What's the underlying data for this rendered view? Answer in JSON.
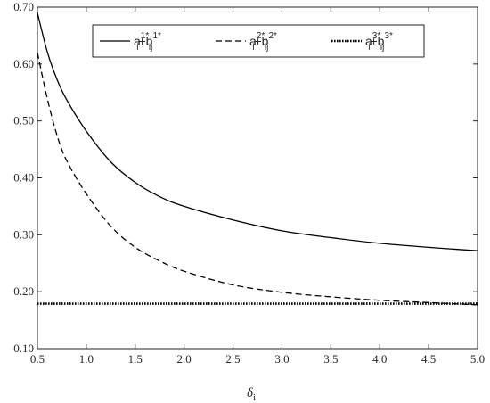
{
  "chart_data": {
    "type": "line",
    "xlabel": "δ",
    "xlabel_sub": "i",
    "ylabel": "",
    "xlim": [
      0.5,
      5.0
    ],
    "ylim": [
      0.1,
      0.7
    ],
    "xticks": [
      0.5,
      1.0,
      1.5,
      2.0,
      2.5,
      3.0,
      3.5,
      4.0,
      4.5,
      5.0
    ],
    "xtick_labels": [
      "0.5",
      "1.0",
      "1.5",
      "2.0",
      "2.5",
      "3.0",
      "3.5",
      "4.0",
      "4.5",
      "5.0"
    ],
    "yticks": [
      0.1,
      0.2,
      0.3,
      0.4,
      0.5,
      0.6,
      0.7
    ],
    "ytick_labels": [
      "0.10",
      "0.20",
      "0.30",
      "0.40",
      "0.50",
      "0.60",
      "0.70"
    ],
    "grid": false,
    "legend_position": "top-right",
    "x": [
      0.5,
      0.6,
      0.7,
      0.8,
      1.0,
      1.25,
      1.5,
      1.75,
      2.0,
      2.5,
      3.0,
      3.5,
      4.0,
      4.5,
      5.0
    ],
    "series": [
      {
        "legend": {
          "a": "a",
          "a_sup": "1*",
          "a_sub": "i",
          "plus": "+b",
          "b_sup": "1*",
          "b_sub": "ij"
        },
        "style": "solid",
        "color": "#000000",
        "values": [
          0.69,
          0.622,
          0.573,
          0.537,
          0.482,
          0.428,
          0.392,
          0.367,
          0.35,
          0.326,
          0.307,
          0.295,
          0.285,
          0.278,
          0.272
        ]
      },
      {
        "legend": {
          "a": "a",
          "a_sup": "2*",
          "a_sub": "i",
          "plus": "+b",
          "b_sup": "2*",
          "b_sub": "ij"
        },
        "style": "dashed",
        "color": "#000000",
        "values": [
          0.62,
          0.54,
          0.475,
          0.43,
          0.372,
          0.315,
          0.278,
          0.254,
          0.236,
          0.212,
          0.199,
          0.191,
          0.185,
          0.181,
          0.177
        ]
      },
      {
        "legend": {
          "a": "a",
          "a_sup": "3*",
          "a_sub": "i",
          "plus": "+b",
          "b_sup": "3*",
          "b_sub": "ij"
        },
        "style": "dotted",
        "color": "#000000",
        "values": [
          0.179,
          0.179,
          0.179,
          0.179,
          0.179,
          0.179,
          0.179,
          0.179,
          0.179,
          0.179,
          0.179,
          0.179,
          0.179,
          0.179,
          0.179
        ]
      }
    ]
  }
}
